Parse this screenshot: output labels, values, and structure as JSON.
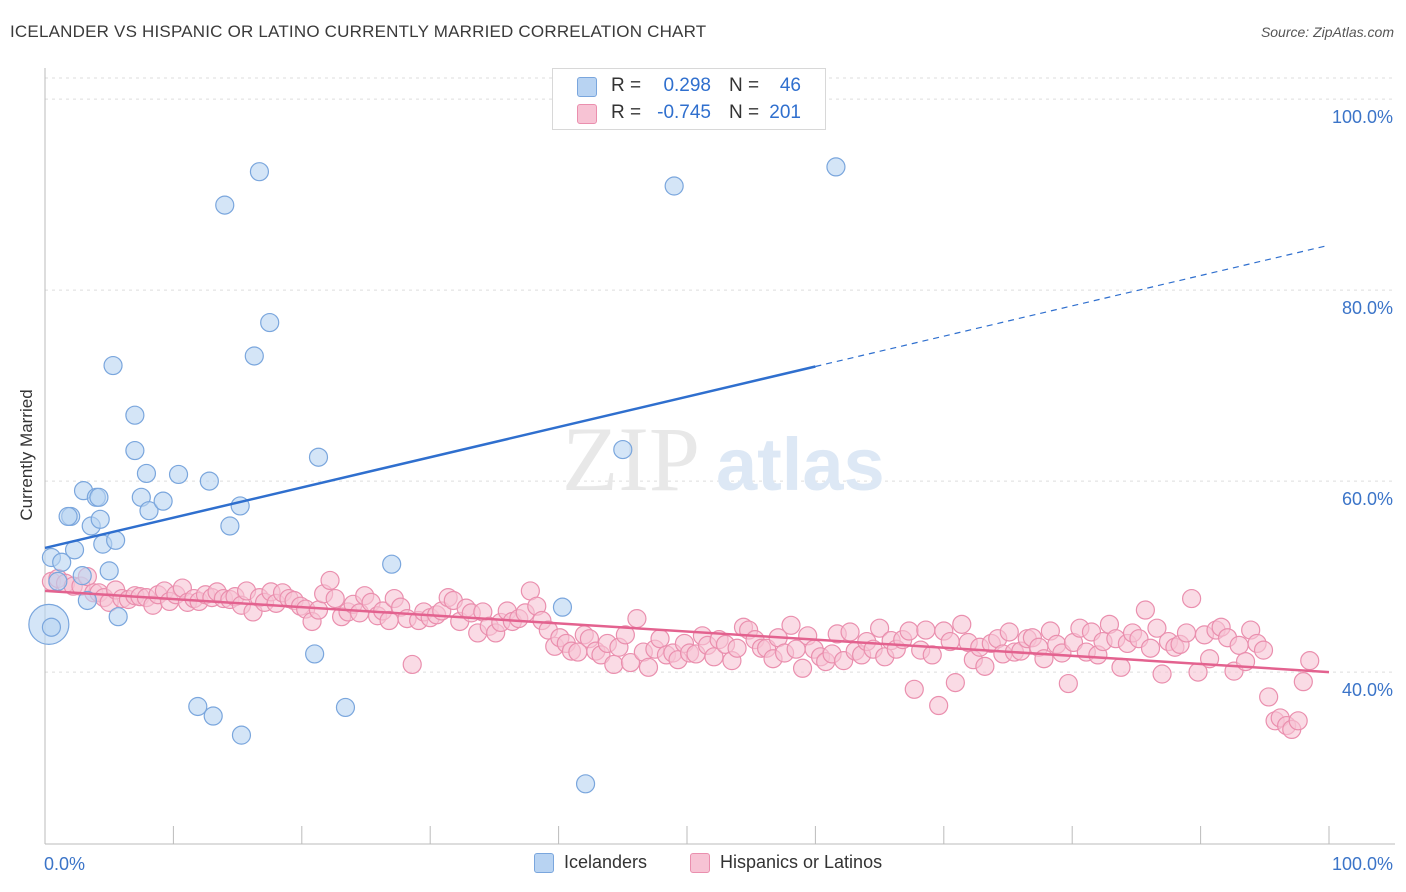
{
  "title": "ICELANDER VS HISPANIC OR LATINO CURRENTLY MARRIED CORRELATION CHART",
  "source": "Source: ZipAtlas.com",
  "watermark": {
    "zip": "ZIP",
    "atlas": "atlas"
  },
  "colors": {
    "blue_fill": "#b8d3f2",
    "blue_stroke": "#7aa6dd",
    "blue_line": "#2f6fce",
    "pink_fill": "#f7c3d4",
    "pink_stroke": "#ea8fae",
    "pink_line": "#e3628f",
    "axis_label": "#3b74c8",
    "grid": "#dddddd"
  },
  "legend": {
    "series1": {
      "r_label": "R =",
      "r_value": "0.298",
      "n_label": "N =",
      "n_value": "46"
    },
    "series2": {
      "r_label": "R =",
      "r_value": "-0.745",
      "n_label": "N =",
      "n_value": "201"
    }
  },
  "bottom_legend": {
    "series1": "Icelanders",
    "series2": "Hispanics or Latinos"
  },
  "chart_data": {
    "type": "scatter",
    "title": "ICELANDER VS HISPANIC OR LATINO CURRENTLY MARRIED CORRELATION CHART",
    "xlabel": "",
    "ylabel": "Currently Married",
    "x_ticks": [
      "0.0%",
      "100.0%"
    ],
    "y_ticks": [
      "40.0%",
      "60.0%",
      "80.0%",
      "100.0%"
    ],
    "xlim": [
      0,
      100
    ],
    "ylim": [
      22,
      103
    ],
    "grid": true,
    "legend_position": "top-center",
    "series": [
      {
        "name": "Icelanders",
        "r": 0.298,
        "n": 46,
        "trend": {
          "x": [
            0,
            60
          ],
          "y": [
            53.0,
            72.0
          ],
          "dashed_to": [
            100,
            84.7
          ]
        },
        "points": [
          [
            0.3,
            45.0
          ],
          [
            0.5,
            52.0
          ],
          [
            1.3,
            51.5
          ],
          [
            1.0,
            49.5
          ],
          [
            2.0,
            56.3
          ],
          [
            1.8,
            56.3
          ],
          [
            2.3,
            52.8
          ],
          [
            2.9,
            50.1
          ],
          [
            3.0,
            59.0
          ],
          [
            3.6,
            55.3
          ],
          [
            4.0,
            58.3
          ],
          [
            4.2,
            58.3
          ],
          [
            4.3,
            56.0
          ],
          [
            4.5,
            53.4
          ],
          [
            3.3,
            47.5
          ],
          [
            5.0,
            50.6
          ],
          [
            5.5,
            53.8
          ],
          [
            5.7,
            45.8
          ],
          [
            5.3,
            72.1
          ],
          [
            7.0,
            63.2
          ],
          [
            7.0,
            66.9
          ],
          [
            7.5,
            58.3
          ],
          [
            7.9,
            60.8
          ],
          [
            8.1,
            56.9
          ],
          [
            9.2,
            57.9
          ],
          [
            10.4,
            60.7
          ],
          [
            12.8,
            60.0
          ],
          [
            14.4,
            55.3
          ],
          [
            14.0,
            88.9
          ],
          [
            15.2,
            57.4
          ],
          [
            16.3,
            73.1
          ],
          [
            16.7,
            92.4
          ],
          [
            17.5,
            76.6
          ],
          [
            21.3,
            62.5
          ],
          [
            21.0,
            41.9
          ],
          [
            23.4,
            36.3
          ],
          [
            27.0,
            51.3
          ],
          [
            40.3,
            46.8
          ],
          [
            45.0,
            63.3
          ],
          [
            49.0,
            90.9
          ],
          [
            61.6,
            92.9
          ],
          [
            42.1,
            28.3
          ],
          [
            11.9,
            36.4
          ],
          [
            13.1,
            35.4
          ],
          [
            15.3,
            33.4
          ],
          [
            0.5,
            44.7
          ]
        ]
      },
      {
        "name": "Hispanics or Latinos",
        "r": -0.745,
        "n": 201,
        "trend": {
          "x": [
            0,
            100
          ],
          "y": [
            48.5,
            40.0
          ]
        },
        "points": [
          [
            0.5,
            49.5
          ],
          [
            1.0,
            49.8
          ],
          [
            1.6,
            49.3
          ],
          [
            2.2,
            49.0
          ],
          [
            2.8,
            49.0
          ],
          [
            3.3,
            50.0
          ],
          [
            3.8,
            48.3
          ],
          [
            4.2,
            48.3
          ],
          [
            4.6,
            47.8
          ],
          [
            5.0,
            47.3
          ],
          [
            5.5,
            48.6
          ],
          [
            6.0,
            47.7
          ],
          [
            6.5,
            47.6
          ],
          [
            7.0,
            48.0
          ],
          [
            7.4,
            47.9
          ],
          [
            7.9,
            47.8
          ],
          [
            8.4,
            47.0
          ],
          [
            8.8,
            48.1
          ],
          [
            9.3,
            48.5
          ],
          [
            9.7,
            47.4
          ],
          [
            10.2,
            48.1
          ],
          [
            10.7,
            48.8
          ],
          [
            11.1,
            47.3
          ],
          [
            11.6,
            47.7
          ],
          [
            12.0,
            47.4
          ],
          [
            12.5,
            48.1
          ],
          [
            13.0,
            47.8
          ],
          [
            13.4,
            48.4
          ],
          [
            13.9,
            47.7
          ],
          [
            14.4,
            47.6
          ],
          [
            14.8,
            47.9
          ],
          [
            15.3,
            47.0
          ],
          [
            15.7,
            48.5
          ],
          [
            16.2,
            46.3
          ],
          [
            16.7,
            47.8
          ],
          [
            17.1,
            47.3
          ],
          [
            17.6,
            48.4
          ],
          [
            18.0,
            47.2
          ],
          [
            18.5,
            48.3
          ],
          [
            19.0,
            47.7
          ],
          [
            19.4,
            47.5
          ],
          [
            19.9,
            46.9
          ],
          [
            20.3,
            46.6
          ],
          [
            20.8,
            45.3
          ],
          [
            21.3,
            46.5
          ],
          [
            21.7,
            48.2
          ],
          [
            22.2,
            49.6
          ],
          [
            22.6,
            47.7
          ],
          [
            23.1,
            45.8
          ],
          [
            23.6,
            46.3
          ],
          [
            24.0,
            47.1
          ],
          [
            24.5,
            46.2
          ],
          [
            24.9,
            48.0
          ],
          [
            25.4,
            47.3
          ],
          [
            25.9,
            45.9
          ],
          [
            26.3,
            46.4
          ],
          [
            26.8,
            45.4
          ],
          [
            27.2,
            47.7
          ],
          [
            27.7,
            46.8
          ],
          [
            28.2,
            45.6
          ],
          [
            28.6,
            40.8
          ],
          [
            29.1,
            45.4
          ],
          [
            29.5,
            46.3
          ],
          [
            30.0,
            45.7
          ],
          [
            30.5,
            46.0
          ],
          [
            30.9,
            46.4
          ],
          [
            31.4,
            47.8
          ],
          [
            31.8,
            47.5
          ],
          [
            32.3,
            45.3
          ],
          [
            32.8,
            46.7
          ],
          [
            33.2,
            46.2
          ],
          [
            33.7,
            44.1
          ],
          [
            34.1,
            46.3
          ],
          [
            34.6,
            44.8
          ],
          [
            35.1,
            44.1
          ],
          [
            35.5,
            45.2
          ],
          [
            36.0,
            46.4
          ],
          [
            36.4,
            45.3
          ],
          [
            36.9,
            45.6
          ],
          [
            37.4,
            46.2
          ],
          [
            37.8,
            48.5
          ],
          [
            38.3,
            46.9
          ],
          [
            38.7,
            45.4
          ],
          [
            39.2,
            44.4
          ],
          [
            39.7,
            42.7
          ],
          [
            40.1,
            43.6
          ],
          [
            40.6,
            43.0
          ],
          [
            41.0,
            42.2
          ],
          [
            41.5,
            42.1
          ],
          [
            42.0,
            43.9
          ],
          [
            42.4,
            43.5
          ],
          [
            42.9,
            42.2
          ],
          [
            43.3,
            41.8
          ],
          [
            43.8,
            43.0
          ],
          [
            44.3,
            40.8
          ],
          [
            44.7,
            42.6
          ],
          [
            45.2,
            43.9
          ],
          [
            45.6,
            41.0
          ],
          [
            46.1,
            45.6
          ],
          [
            46.6,
            42.1
          ],
          [
            47.0,
            40.5
          ],
          [
            47.5,
            42.4
          ],
          [
            47.9,
            43.5
          ],
          [
            48.4,
            41.8
          ],
          [
            48.9,
            42.0
          ],
          [
            49.3,
            41.3
          ],
          [
            49.8,
            43.0
          ],
          [
            50.2,
            42.0
          ],
          [
            50.7,
            41.9
          ],
          [
            51.2,
            43.8
          ],
          [
            51.6,
            42.8
          ],
          [
            52.1,
            41.6
          ],
          [
            52.5,
            43.4
          ],
          [
            53.0,
            42.9
          ],
          [
            53.5,
            41.2
          ],
          [
            53.9,
            42.5
          ],
          [
            54.4,
            44.7
          ],
          [
            54.8,
            44.4
          ],
          [
            55.3,
            43.4
          ],
          [
            55.8,
            42.5
          ],
          [
            56.2,
            42.5
          ],
          [
            56.7,
            41.4
          ],
          [
            57.1,
            43.6
          ],
          [
            57.6,
            42.0
          ],
          [
            58.1,
            44.9
          ],
          [
            58.5,
            42.4
          ],
          [
            59.0,
            40.4
          ],
          [
            59.4,
            43.8
          ],
          [
            59.9,
            42.4
          ],
          [
            60.4,
            41.6
          ],
          [
            60.8,
            41.1
          ],
          [
            61.3,
            41.9
          ],
          [
            61.7,
            44.0
          ],
          [
            62.2,
            41.2
          ],
          [
            62.7,
            44.2
          ],
          [
            63.1,
            42.2
          ],
          [
            63.6,
            41.8
          ],
          [
            64.0,
            43.2
          ],
          [
            64.5,
            42.4
          ],
          [
            65.0,
            44.6
          ],
          [
            65.4,
            41.6
          ],
          [
            65.9,
            43.3
          ],
          [
            66.3,
            42.4
          ],
          [
            66.8,
            43.4
          ],
          [
            67.3,
            44.3
          ],
          [
            67.7,
            38.2
          ],
          [
            68.2,
            42.3
          ],
          [
            68.6,
            44.4
          ],
          [
            69.1,
            41.8
          ],
          [
            69.6,
            36.5
          ],
          [
            70.0,
            44.3
          ],
          [
            70.5,
            43.2
          ],
          [
            70.9,
            38.9
          ],
          [
            71.4,
            45.0
          ],
          [
            71.9,
            43.1
          ],
          [
            72.3,
            41.3
          ],
          [
            72.8,
            42.6
          ],
          [
            73.2,
            40.6
          ],
          [
            73.7,
            43.0
          ],
          [
            74.2,
            43.5
          ],
          [
            74.6,
            41.9
          ],
          [
            75.1,
            44.2
          ],
          [
            75.5,
            42.1
          ],
          [
            76.0,
            42.2
          ],
          [
            76.5,
            43.5
          ],
          [
            76.9,
            43.6
          ],
          [
            77.4,
            42.6
          ],
          [
            77.8,
            41.4
          ],
          [
            78.3,
            44.3
          ],
          [
            78.8,
            42.9
          ],
          [
            79.2,
            42.0
          ],
          [
            79.7,
            38.8
          ],
          [
            80.1,
            43.1
          ],
          [
            80.6,
            44.6
          ],
          [
            81.1,
            42.1
          ],
          [
            81.5,
            44.2
          ],
          [
            82.0,
            41.8
          ],
          [
            82.4,
            43.2
          ],
          [
            82.9,
            45.0
          ],
          [
            83.4,
            43.5
          ],
          [
            83.8,
            40.5
          ],
          [
            84.3,
            43.0
          ],
          [
            84.7,
            44.1
          ],
          [
            85.2,
            43.5
          ],
          [
            85.7,
            46.5
          ],
          [
            86.1,
            42.5
          ],
          [
            86.6,
            44.6
          ],
          [
            87.0,
            39.8
          ],
          [
            87.5,
            43.2
          ],
          [
            88.0,
            42.6
          ],
          [
            88.4,
            42.9
          ],
          [
            88.9,
            44.1
          ],
          [
            89.3,
            47.7
          ],
          [
            89.8,
            40.0
          ],
          [
            90.3,
            43.9
          ],
          [
            90.7,
            41.4
          ],
          [
            91.2,
            44.4
          ],
          [
            91.6,
            44.7
          ],
          [
            92.1,
            43.6
          ],
          [
            92.6,
            40.1
          ],
          [
            93.0,
            42.8
          ],
          [
            93.5,
            41.1
          ],
          [
            93.9,
            44.4
          ],
          [
            94.4,
            43.0
          ],
          [
            94.9,
            42.3
          ],
          [
            95.3,
            37.4
          ],
          [
            95.8,
            34.9
          ],
          [
            96.2,
            35.2
          ],
          [
            96.7,
            34.4
          ],
          [
            97.1,
            34.0
          ],
          [
            97.6,
            34.9
          ],
          [
            98.0,
            39.0
          ],
          [
            98.5,
            41.2
          ]
        ]
      }
    ]
  }
}
